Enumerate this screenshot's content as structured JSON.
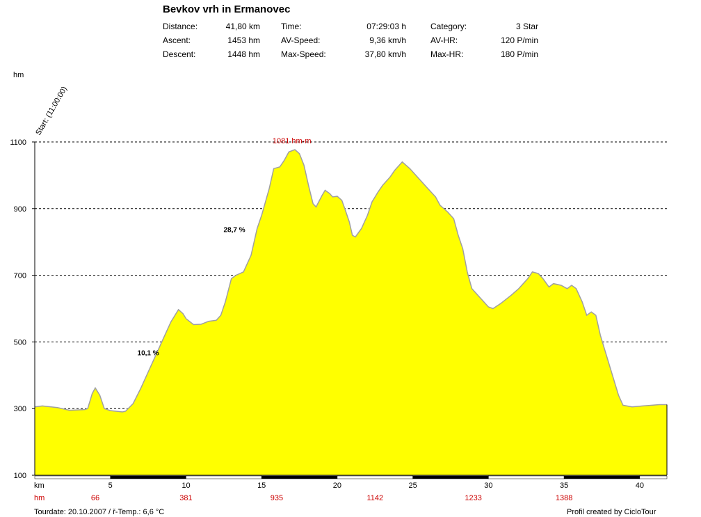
{
  "title": "Bevkov vrh in Ermanovec",
  "stats": {
    "distance_label": "Distance:",
    "distance_value": "41,80 km",
    "ascent_label": "Ascent:",
    "ascent_value": "1453 hm",
    "descent_label": "Descent:",
    "descent_value": "1448 hm",
    "time_label": "Time:",
    "time_value": "07:29:03 h",
    "avspeed_label": "AV-Speed:",
    "avspeed_value": "9,36 km/h",
    "maxspeed_label": "Max-Speed:",
    "maxspeed_value": "37,80 km/h",
    "category_label": "Category:",
    "category_value": "3 Star",
    "avhr_label": "AV-HR:",
    "avhr_value": "120 P/min",
    "maxhr_label": "Max-HR:",
    "maxhr_value": "180 P/min"
  },
  "footer": {
    "tourdate": "Tourdate: 20.10.2007  /  ř-Temp.: 6,6 °C",
    "credit": "Profil created by CicloTour"
  },
  "colors": {
    "fill": "#ffff00",
    "outline": "#a0a0a0",
    "accent": "#cc0000"
  },
  "chart_data": {
    "type": "area",
    "ylabel": "hm",
    "xlabel": "km",
    "start_label": "Start: (11:00:00)",
    "ylim": [
      100,
      1100
    ],
    "xlim": [
      0,
      41.8
    ],
    "grid": true,
    "yticks": [
      100,
      300,
      500,
      700,
      900,
      1100
    ],
    "xticks": [
      5,
      10,
      15,
      20,
      25,
      30,
      35,
      40
    ],
    "hm_row_label": "hm",
    "hm_markers": [
      {
        "km": 4,
        "label": "66"
      },
      {
        "km": 10,
        "label": "381"
      },
      {
        "km": 16,
        "label": "935"
      },
      {
        "km": 22.5,
        "label": "1142"
      },
      {
        "km": 29,
        "label": "1233"
      },
      {
        "km": 35,
        "label": "1388"
      }
    ],
    "annotations": [
      {
        "km": 7.5,
        "alt": 460,
        "label": "10,1 %"
      },
      {
        "km": 13.2,
        "alt": 830,
        "label": "28,7 %"
      }
    ],
    "peak_label": "1081 hm-m",
    "peak_km": 17.0,
    "profile": [
      [
        0,
        305
      ],
      [
        0.5,
        308
      ],
      [
        1.5,
        303
      ],
      [
        2.3,
        295
      ],
      [
        3.3,
        297
      ],
      [
        3.5,
        300
      ],
      [
        3.8,
        345
      ],
      [
        4.0,
        362
      ],
      [
        4.3,
        340
      ],
      [
        4.6,
        300
      ],
      [
        5.0,
        294
      ],
      [
        5.8,
        290
      ],
      [
        6.0,
        292
      ],
      [
        6.5,
        315
      ],
      [
        7.0,
        360
      ],
      [
        7.5,
        410
      ],
      [
        8.0,
        460
      ],
      [
        8.5,
        510
      ],
      [
        9.0,
        560
      ],
      [
        9.5,
        597
      ],
      [
        9.8,
        585
      ],
      [
        10.0,
        570
      ],
      [
        10.5,
        552
      ],
      [
        11.0,
        553
      ],
      [
        11.5,
        562
      ],
      [
        12.0,
        565
      ],
      [
        12.3,
        580
      ],
      [
        12.6,
        620
      ],
      [
        13.0,
        690
      ],
      [
        13.3,
        700
      ],
      [
        13.8,
        710
      ],
      [
        14.3,
        760
      ],
      [
        14.7,
        840
      ],
      [
        15.0,
        880
      ],
      [
        15.5,
        960
      ],
      [
        15.8,
        1020
      ],
      [
        16.2,
        1025
      ],
      [
        16.5,
        1045
      ],
      [
        16.8,
        1070
      ],
      [
        17.2,
        1077
      ],
      [
        17.5,
        1065
      ],
      [
        17.8,
        1030
      ],
      [
        18.1,
        970
      ],
      [
        18.4,
        915
      ],
      [
        18.6,
        905
      ],
      [
        19.0,
        940
      ],
      [
        19.2,
        955
      ],
      [
        19.5,
        945
      ],
      [
        19.7,
        935
      ],
      [
        20.0,
        937
      ],
      [
        20.3,
        925
      ],
      [
        20.5,
        900
      ],
      [
        20.8,
        860
      ],
      [
        21.0,
        820
      ],
      [
        21.2,
        815
      ],
      [
        21.6,
        840
      ],
      [
        22.0,
        880
      ],
      [
        22.3,
        920
      ],
      [
        22.7,
        950
      ],
      [
        23.0,
        970
      ],
      [
        23.5,
        995
      ],
      [
        23.8,
        1015
      ],
      [
        24.3,
        1040
      ],
      [
        24.8,
        1020
      ],
      [
        25.2,
        1000
      ],
      [
        25.6,
        980
      ],
      [
        26.0,
        960
      ],
      [
        26.5,
        935
      ],
      [
        26.8,
        910
      ],
      [
        27.3,
        890
      ],
      [
        27.7,
        870
      ],
      [
        28.0,
        820
      ],
      [
        28.3,
        780
      ],
      [
        28.6,
        710
      ],
      [
        28.9,
        660
      ],
      [
        29.5,
        630
      ],
      [
        30.0,
        605
      ],
      [
        30.3,
        600
      ],
      [
        30.8,
        615
      ],
      [
        31.5,
        640
      ],
      [
        32.0,
        660
      ],
      [
        32.6,
        690
      ],
      [
        32.9,
        710
      ],
      [
        33.3,
        705
      ],
      [
        33.6,
        690
      ],
      [
        34.0,
        665
      ],
      [
        34.3,
        675
      ],
      [
        34.8,
        670
      ],
      [
        35.2,
        660
      ],
      [
        35.5,
        670
      ],
      [
        35.8,
        660
      ],
      [
        36.2,
        620
      ],
      [
        36.5,
        580
      ],
      [
        36.8,
        590
      ],
      [
        37.1,
        580
      ],
      [
        37.4,
        520
      ],
      [
        37.8,
        460
      ],
      [
        38.2,
        400
      ],
      [
        38.6,
        340
      ],
      [
        38.9,
        310
      ],
      [
        39.5,
        305
      ],
      [
        40.2,
        308
      ],
      [
        40.8,
        310
      ],
      [
        41.3,
        312
      ],
      [
        41.8,
        312
      ]
    ]
  }
}
